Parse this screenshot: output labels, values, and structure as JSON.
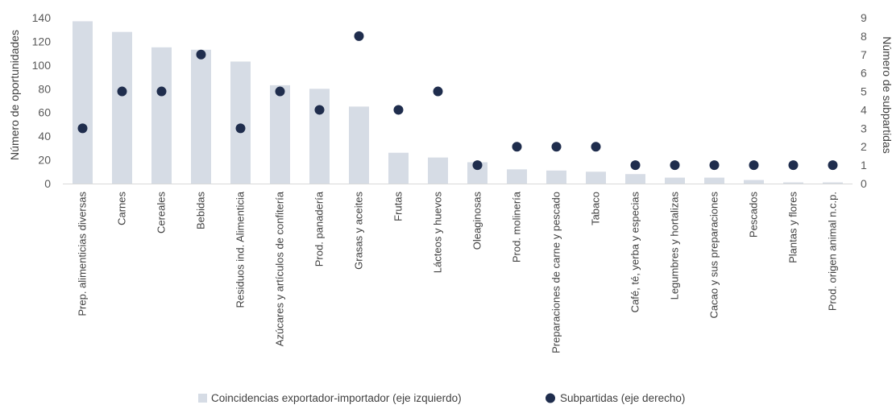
{
  "chart_data": {
    "type": "bar",
    "title": "",
    "xlabel": "",
    "ylabel": "Número de oportunidades",
    "y2label": "Número de subpartidas",
    "ylim": [
      0,
      140
    ],
    "y2lim": [
      0,
      9
    ],
    "yticks": [
      "0",
      "20",
      "40",
      "60",
      "80",
      "100",
      "120",
      "140"
    ],
    "y2ticks": [
      "0",
      "1",
      "2",
      "3",
      "4",
      "5",
      "6",
      "7",
      "8",
      "9"
    ],
    "grid": false,
    "legend_position": "bottom",
    "categories": [
      "Prep. alimenticias diversas",
      "Carnes",
      "Cereales",
      "Bebidas",
      "Residuos ind. Alimenticia",
      "Azúcares y artículos de confitería",
      "Prod. panadería",
      "Grasas y aceites",
      "Frutas",
      "Lácteos y huevos",
      "Oleaginosas",
      "Prod. molinería",
      "Preparaciones de carne y pescado",
      "Tabaco",
      "Café, té, yerba y especias",
      "Legumbres y hortalizas",
      "Cacao y sus preparaciones",
      "Pescados",
      "Plantas y flores",
      "Prod. origen animal n.c.p."
    ],
    "series": [
      {
        "name": "Coincidencias exportador-importador (eje izquierdo)",
        "type": "bar",
        "axis": "left",
        "color": "#d6dce5",
        "values": [
          137,
          128,
          115,
          113,
          103,
          83,
          80,
          65,
          26,
          22,
          18,
          12,
          11,
          10,
          8,
          5,
          5,
          3,
          1,
          1
        ]
      },
      {
        "name": "Subpartidas (eje derecho)",
        "type": "scatter",
        "axis": "right",
        "color": "#1f2d4d",
        "values": [
          3,
          5,
          5,
          7,
          3,
          5,
          4,
          8,
          4,
          5,
          1,
          2,
          2,
          2,
          1,
          1,
          1,
          1,
          1,
          1
        ]
      }
    ]
  }
}
